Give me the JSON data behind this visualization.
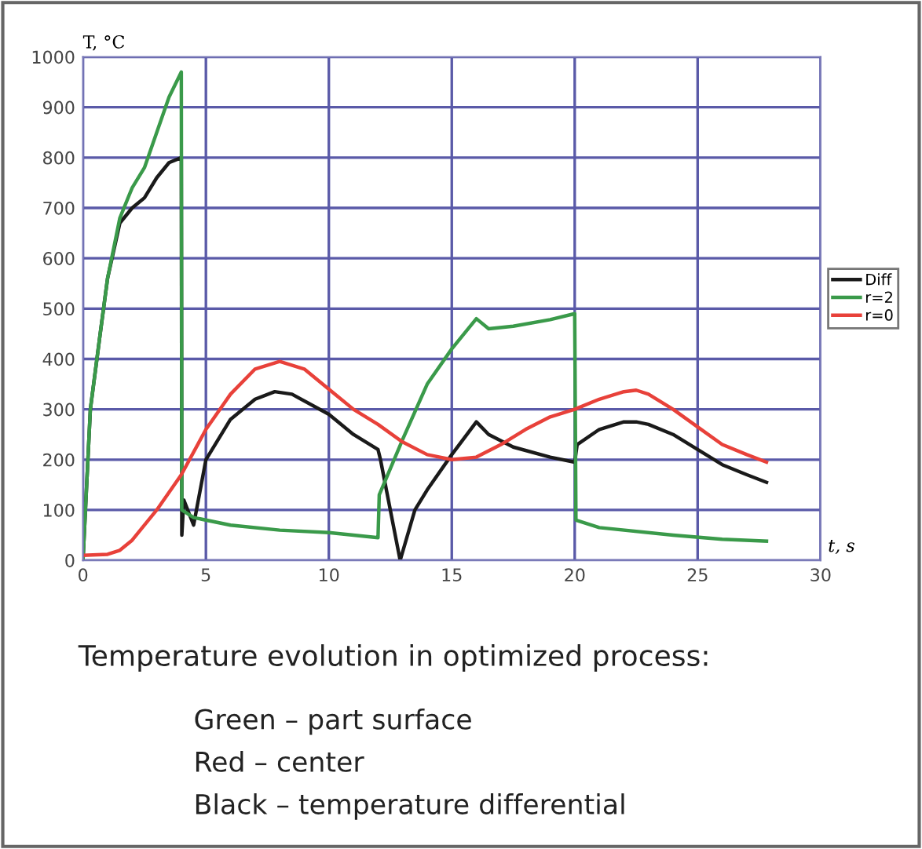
{
  "chart_data": {
    "type": "line",
    "xlabel": "t, s",
    "ylabel": "T, °C",
    "xlim": [
      0,
      30
    ],
    "ylim": [
      0,
      1000
    ],
    "xticks": [
      0,
      5,
      10,
      15,
      20,
      25,
      30
    ],
    "yticks": [
      0,
      100,
      200,
      300,
      400,
      500,
      600,
      700,
      800,
      900,
      1000
    ],
    "grid": true,
    "legend": "right",
    "marker": "none",
    "line_style": "solid",
    "series": [
      {
        "name": "Diff",
        "color": "#1a1a1a",
        "x": [
          0,
          0.1,
          0.3,
          0.7,
          1,
          1.5,
          2,
          2.5,
          3,
          3.5,
          4,
          4.02,
          4.1,
          4.5,
          5,
          6,
          7,
          7.8,
          8.5,
          10,
          11,
          12,
          12.1,
          12.9,
          13.5,
          14,
          15,
          16,
          16.5,
          17.5,
          19,
          20,
          20.1,
          21,
          22,
          22.5,
          23,
          24,
          25,
          26,
          27,
          27.8
        ],
        "values": [
          0,
          100,
          300,
          450,
          560,
          670,
          700,
          720,
          760,
          790,
          800,
          50,
          120,
          70,
          200,
          280,
          320,
          335,
          330,
          290,
          250,
          220,
          200,
          0,
          100,
          140,
          210,
          275,
          250,
          225,
          205,
          195,
          230,
          260,
          275,
          275,
          270,
          250,
          220,
          190,
          170,
          155
        ]
      },
      {
        "name": "r=2",
        "color": "#3a9a4a",
        "x": [
          0,
          0.1,
          0.3,
          0.7,
          1,
          1.5,
          2,
          2.5,
          3,
          3.5,
          4,
          4.02,
          4.5,
          6,
          8,
          10,
          12,
          12.05,
          13,
          14,
          15,
          16,
          16.5,
          17.5,
          19,
          20,
          20.05,
          21,
          24,
          26,
          27.8
        ],
        "values": [
          0,
          100,
          300,
          450,
          560,
          680,
          740,
          780,
          850,
          920,
          970,
          100,
          85,
          70,
          60,
          55,
          45,
          130,
          240,
          350,
          420,
          480,
          460,
          465,
          478,
          490,
          80,
          65,
          50,
          42,
          38
        ]
      },
      {
        "name": "r=0",
        "color": "#e8413a",
        "x": [
          0,
          1,
          1.5,
          2,
          3,
          4,
          5,
          6,
          7,
          8,
          9,
          10,
          11,
          12,
          13,
          14,
          15,
          16,
          17,
          18,
          19,
          20,
          21,
          22,
          22.5,
          23,
          24,
          25,
          26,
          27,
          27.8
        ],
        "values": [
          10,
          12,
          20,
          40,
          100,
          170,
          260,
          330,
          380,
          395,
          380,
          340,
          300,
          270,
          235,
          210,
          200,
          205,
          230,
          260,
          285,
          300,
          320,
          335,
          338,
          330,
          300,
          265,
          230,
          210,
          195
        ]
      }
    ],
    "annotations": [
      "Temperature evolution in optimized process:",
      "Green – part surface",
      "Red – center",
      "Black – temperature differential"
    ]
  }
}
